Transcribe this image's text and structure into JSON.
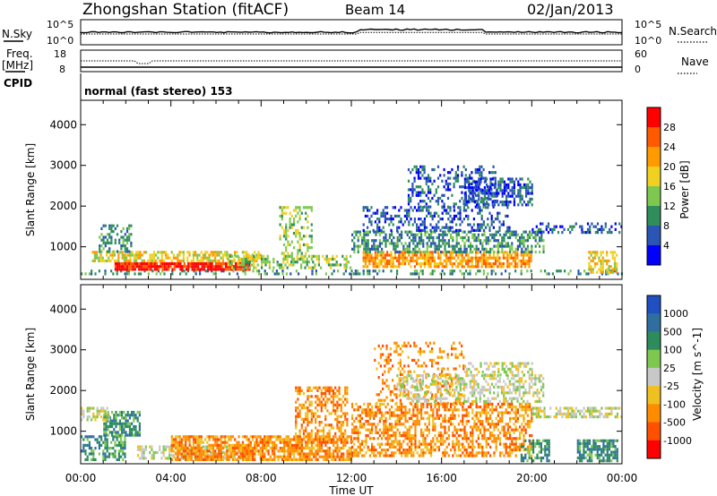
{
  "header": {
    "station": "Zhongshan Station (fitACF)",
    "beam": "Beam 14",
    "date": "02/Jan/2013"
  },
  "top_panels": {
    "nsky_label": "N.Sky",
    "nsky_ticks": [
      "10^5",
      "10^0"
    ],
    "nsearch_label": "N.Search",
    "nsearch_ticks": [
      "10^5",
      "10^0"
    ],
    "freq_label": "Freq.",
    "freq_unit": "[MHz]",
    "freq_ticks": [
      "18",
      "8"
    ],
    "nave_label": "Nave",
    "nave_ticks": [
      "60",
      "0"
    ],
    "cpid_label": "CPID",
    "cpid_text": "normal (fast stereo) 153"
  },
  "chart_data": [
    {
      "type": "heatmap",
      "name": "power",
      "ylabel": "Slant Range [km]",
      "xlabel": "Time UT",
      "x_ticks": [
        "00:00",
        "04:00",
        "08:00",
        "12:00",
        "16:00",
        "20:00",
        "00:00"
      ],
      "y_ticks": [
        1000,
        2000,
        3000,
        4000
      ],
      "ylim": [
        200,
        4600
      ],
      "xlim_hours": [
        0,
        24
      ],
      "colorbar": {
        "label": "Power [dB]",
        "ticks": [
          "4",
          "8",
          "12",
          "16",
          "20",
          "24",
          "28"
        ],
        "colors": [
          "#0000ff",
          "#2a55b4",
          "#2f8e5b",
          "#7ec850",
          "#f0d020",
          "#ff9a00",
          "#ff5a00",
          "#ff0000"
        ]
      },
      "regions": [
        {
          "t0": 0.0,
          "t1": 24.0,
          "r0": 300,
          "r1": 440,
          "level": 2,
          "density": 0.35
        },
        {
          "t0": 1.5,
          "t1": 7.5,
          "r0": 420,
          "r1": 620,
          "level": 7,
          "density": 0.9
        },
        {
          "t0": 0.5,
          "t1": 8.0,
          "r0": 620,
          "r1": 900,
          "level": 4,
          "density": 0.65
        },
        {
          "t0": 0.8,
          "t1": 2.2,
          "r0": 900,
          "r1": 1550,
          "level": 2,
          "density": 0.5
        },
        {
          "t0": 6.5,
          "t1": 12.0,
          "r0": 450,
          "r1": 800,
          "level": 3,
          "density": 0.5
        },
        {
          "t0": 8.8,
          "t1": 10.2,
          "r0": 700,
          "r1": 2000,
          "level": 3,
          "density": 0.4
        },
        {
          "t0": 12.5,
          "t1": 20.0,
          "r0": 500,
          "r1": 900,
          "level": 5,
          "density": 0.7
        },
        {
          "t0": 12.0,
          "t1": 20.5,
          "r0": 900,
          "r1": 1400,
          "level": 2,
          "density": 0.55
        },
        {
          "t0": 12.5,
          "t1": 19.0,
          "r0": 1400,
          "r1": 2000,
          "level": 1,
          "density": 0.35
        },
        {
          "t0": 14.5,
          "t1": 18.5,
          "r0": 2000,
          "r1": 3000,
          "level": 1,
          "density": 0.3
        },
        {
          "t0": 17.0,
          "t1": 20.0,
          "r0": 2000,
          "r1": 2700,
          "level": 1,
          "density": 0.55
        },
        {
          "t0": 20.0,
          "t1": 24.0,
          "r0": 1350,
          "r1": 1600,
          "level": 1,
          "density": 0.45
        },
        {
          "t0": 22.5,
          "t1": 23.8,
          "r0": 350,
          "r1": 900,
          "level": 4,
          "density": 0.6
        }
      ]
    },
    {
      "type": "heatmap",
      "name": "velocity",
      "ylabel": "Slant Range [km]",
      "xlabel": "Time UT",
      "x_ticks": [
        "00:00",
        "04:00",
        "08:00",
        "12:00",
        "16:00",
        "20:00",
        "00:00"
      ],
      "y_ticks": [
        1000,
        2000,
        3000,
        4000
      ],
      "ylim": [
        200,
        4600
      ],
      "xlim_hours": [
        0,
        24
      ],
      "colorbar": {
        "label": "Velocity [m s^-1]",
        "ticks": [
          "1000",
          "500",
          "100",
          "25",
          "-25",
          "-100",
          "-500",
          "-1000"
        ],
        "colors": [
          "#1f4fc0",
          "#2f6fa0",
          "#2d8c5b",
          "#7ec850",
          "#c8c8c8",
          "#f0c020",
          "#ff8c00",
          "#ff5000",
          "#ff0000"
        ]
      },
      "regions": [
        {
          "t0": 0.0,
          "t1": 2.0,
          "r0": 300,
          "r1": 900,
          "level": 2,
          "density": 0.55
        },
        {
          "t0": 1.0,
          "t1": 2.6,
          "r0": 900,
          "r1": 1500,
          "level": 2,
          "density": 0.75
        },
        {
          "t0": 0.0,
          "t1": 1.3,
          "r0": 1300,
          "r1": 1600,
          "level": 4,
          "density": 0.5
        },
        {
          "t0": 2.5,
          "t1": 7.5,
          "r0": 300,
          "r1": 650,
          "level": 4,
          "density": 0.55
        },
        {
          "t0": 4.0,
          "t1": 12.0,
          "r0": 300,
          "r1": 900,
          "level": 6,
          "density": 0.75
        },
        {
          "t0": 9.5,
          "t1": 11.8,
          "r0": 700,
          "r1": 2100,
          "level": 6,
          "density": 0.45
        },
        {
          "t0": 12.0,
          "t1": 20.0,
          "r0": 400,
          "r1": 1700,
          "level": 6,
          "density": 0.55
        },
        {
          "t0": 13.0,
          "t1": 17.0,
          "r0": 1700,
          "r1": 3200,
          "level": 6,
          "density": 0.25
        },
        {
          "t0": 14.0,
          "t1": 20.5,
          "r0": 1700,
          "r1": 2400,
          "level": 4,
          "density": 0.45
        },
        {
          "t0": 17.0,
          "t1": 20.0,
          "r0": 2400,
          "r1": 2700,
          "level": 4,
          "density": 0.4
        },
        {
          "t0": 20.0,
          "t1": 24.0,
          "r0": 1350,
          "r1": 1600,
          "level": 4,
          "density": 0.6
        },
        {
          "t0": 19.5,
          "t1": 20.8,
          "r0": 300,
          "r1": 800,
          "level": 2,
          "density": 0.5
        },
        {
          "t0": 22.0,
          "t1": 23.8,
          "r0": 300,
          "r1": 800,
          "level": 2,
          "density": 0.7
        }
      ]
    }
  ]
}
